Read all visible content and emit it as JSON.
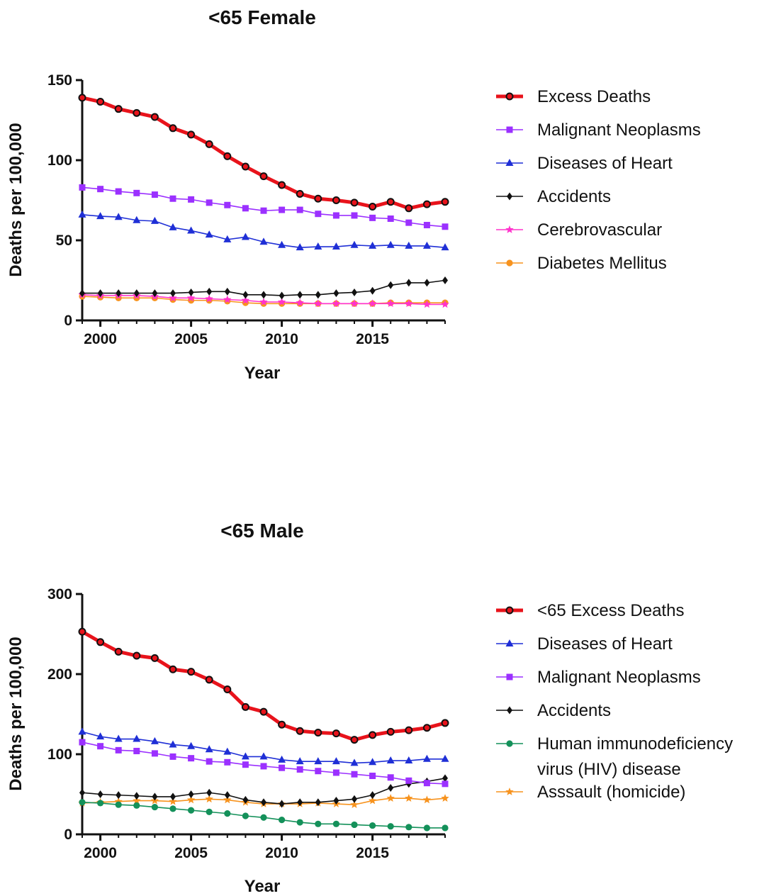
{
  "chart_data": [
    {
      "type": "line",
      "title": "<65 Female",
      "xlabel": "Year",
      "ylabel": "Deaths per 100,000",
      "xlim": [
        1999,
        2019
      ],
      "ylim": [
        0,
        150
      ],
      "xticks": [
        2000,
        2005,
        2010,
        2015
      ],
      "yticks": [
        0,
        50,
        100,
        150
      ],
      "legend_position": "right",
      "grid": false,
      "x": [
        1999,
        2000,
        2001,
        2002,
        2003,
        2004,
        2005,
        2006,
        2007,
        2008,
        2009,
        2010,
        2011,
        2012,
        2013,
        2014,
        2015,
        2016,
        2017,
        2018,
        2019
      ],
      "series": [
        {
          "name": "Excess Deaths",
          "color": "#e8131b",
          "marker": "circle-open",
          "bold": true,
          "values": [
            139,
            136.5,
            132,
            129.5,
            127,
            120,
            116,
            110,
            102.5,
            96,
            90,
            84.5,
            79,
            76,
            75,
            73.5,
            71,
            74,
            70,
            72.5,
            74
          ]
        },
        {
          "name": "Malignant Neoplasms",
          "color": "#9b30ff",
          "marker": "square",
          "values": [
            83,
            82,
            80.5,
            79.5,
            78.5,
            76,
            75.5,
            73.5,
            72,
            70,
            68.5,
            69,
            69,
            66.5,
            65.5,
            65.5,
            64,
            63.5,
            61,
            59.5,
            58.5
          ]
        },
        {
          "name": "Diseases of Heart",
          "color": "#1f2fd6",
          "marker": "triangle",
          "values": [
            66,
            65,
            64.5,
            62.5,
            62,
            58,
            56,
            53.5,
            50.5,
            52,
            49,
            47,
            45.5,
            46,
            46,
            47,
            46.5,
            47,
            46.5,
            46.5,
            45.5
          ]
        },
        {
          "name": "Accidents",
          "color": "#111111",
          "marker": "diamond",
          "values": [
            17,
            17,
            17,
            17,
            17,
            17,
            17.5,
            18,
            18,
            16,
            16,
            15.5,
            16,
            16,
            17,
            17.5,
            18.5,
            22,
            23.5,
            23.5,
            25
          ]
        },
        {
          "name": "Cerebrovascular",
          "color": "#ff33cc",
          "marker": "star",
          "values": [
            16,
            15.5,
            15.5,
            15.5,
            15,
            14,
            14,
            13.5,
            13,
            12.5,
            11.5,
            11.5,
            11,
            10.5,
            10.5,
            10.5,
            10.5,
            10.5,
            10.5,
            10,
            10
          ]
        },
        {
          "name": "Diabetes Mellitus",
          "color": "#f7931e",
          "marker": "circle",
          "values": [
            15,
            14.5,
            14,
            14,
            14,
            13,
            12.5,
            12.5,
            12,
            11,
            10.5,
            10.5,
            10.5,
            10.5,
            10.5,
            10.5,
            10.5,
            11,
            11,
            11,
            11
          ]
        }
      ]
    },
    {
      "type": "line",
      "title": "<65 Male",
      "xlabel": "Year",
      "ylabel": "Deaths per 100,000",
      "xlim": [
        1999,
        2019
      ],
      "ylim": [
        0,
        300
      ],
      "xticks": [
        2000,
        2005,
        2010,
        2015
      ],
      "yticks": [
        0,
        100,
        200,
        300
      ],
      "legend_position": "right",
      "grid": false,
      "x": [
        1999,
        2000,
        2001,
        2002,
        2003,
        2004,
        2005,
        2006,
        2007,
        2008,
        2009,
        2010,
        2011,
        2012,
        2013,
        2014,
        2015,
        2016,
        2017,
        2018,
        2019
      ],
      "series": [
        {
          "name": "<65 Excess Deaths",
          "color": "#e8131b",
          "marker": "circle-open",
          "bold": true,
          "values": [
            253,
            240,
            228,
            223,
            220,
            206,
            203,
            193,
            181,
            159,
            153,
            137,
            129,
            127,
            126,
            118,
            124,
            128,
            130,
            133,
            139
          ]
        },
        {
          "name": "Diseases of Heart",
          "color": "#1f2fd6",
          "marker": "triangle",
          "values": [
            128,
            122,
            119,
            119,
            116,
            112,
            110,
            106,
            103,
            97,
            97,
            93,
            91,
            91,
            91,
            89,
            90,
            92,
            92,
            94,
            94
          ]
        },
        {
          "name": "Malignant Neoplasms",
          "color": "#9b30ff",
          "marker": "square",
          "values": [
            115,
            110,
            105,
            104,
            101,
            97,
            95,
            91,
            90,
            87,
            85,
            83,
            81,
            79,
            77,
            75,
            73,
            71,
            67,
            64,
            63
          ]
        },
        {
          "name": "Accidents",
          "color": "#111111",
          "marker": "diamond",
          "values": [
            52,
            50,
            49,
            48,
            47,
            47,
            50,
            52,
            49,
            43,
            40,
            38,
            40,
            40,
            42,
            44,
            49,
            58,
            63,
            66,
            70
          ]
        },
        {
          "name": "Human immunodeficiency virus (HIV) disease",
          "legend_lines": [
            "Human immunodeficiency",
            "virus (HIV) disease"
          ],
          "color": "#14915a",
          "marker": "circle",
          "values": [
            40,
            39,
            37,
            36,
            34,
            32,
            30,
            28,
            26,
            23,
            21,
            18,
            15,
            13,
            13,
            12,
            11,
            10,
            9,
            8,
            8
          ]
        },
        {
          "name": "Asssault (homicide)",
          "color": "#f7931e",
          "marker": "star",
          "values": [
            39,
            40,
            41,
            42,
            42,
            41,
            43,
            44,
            43,
            40,
            38,
            38,
            38,
            39,
            38,
            37,
            42,
            45,
            45,
            43,
            45
          ]
        }
      ]
    }
  ]
}
